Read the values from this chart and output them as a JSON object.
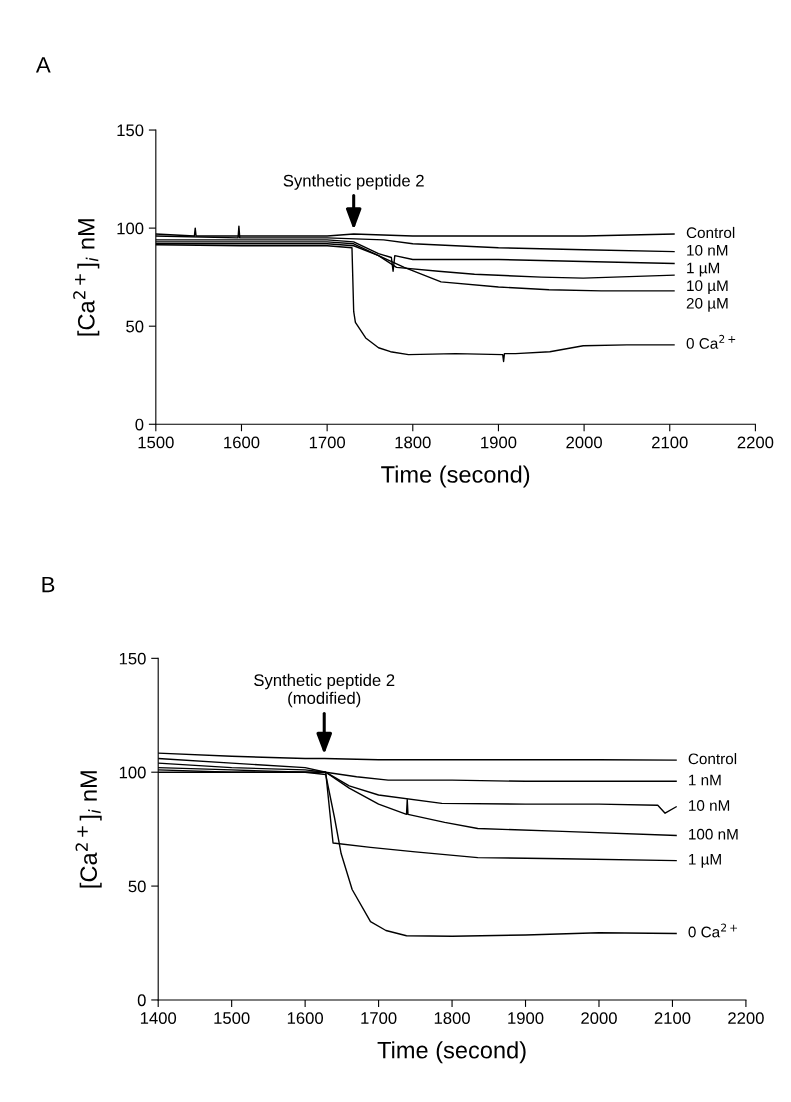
{
  "chart_data": [
    {
      "type": "line",
      "title": "A",
      "xlabel": "Time (second)",
      "ylabel": "[Ca$^{2+}$]$_{i}$ nM",
      "xlim": [
        1500,
        2200
      ],
      "xticks": [
        1500,
        1600,
        1700,
        1800,
        1900,
        2000,
        2100,
        2200
      ],
      "ylim": [
        0,
        150
      ],
      "yticks": [
        0,
        50,
        100,
        150
      ],
      "annotations": [
        {
          "text": "Synthetic peptide 2",
          "x": 1731,
          "y": 97
        }
      ],
      "series": [
        {
          "name": "Control",
          "color": "#000000",
          "x": [
            1500,
            1545,
            1546,
            1547,
            1600,
            1700,
            1731,
            1800,
            1900,
            2000,
            2105
          ],
          "values": [
            97,
            96,
            100,
            96,
            96,
            96,
            97,
            96,
            96,
            96,
            97
          ]
        },
        {
          "name": "10 nM",
          "color": "#000000",
          "x": [
            1500,
            1596,
            1597,
            1598,
            1700,
            1766,
            1800,
            1900,
            2000,
            2105
          ],
          "values": [
            96,
            95,
            101,
            95,
            95,
            94,
            92,
            90,
            89,
            88
          ]
        },
        {
          "name": "1 µM",
          "color": "#000000",
          "x": [
            1500,
            1600,
            1700,
            1731,
            1760,
            1775,
            1777,
            1779,
            1800,
            1900,
            2000,
            2105
          ],
          "values": [
            94,
            94,
            94,
            93,
            87,
            85,
            78,
            86,
            84,
            84,
            83,
            82
          ]
        },
        {
          "name": "10 µM",
          "color": "#000000",
          "x": [
            1500,
            1600,
            1700,
            1731,
            1760,
            1781,
            1830,
            1872,
            1950,
            1999,
            2105
          ],
          "values": [
            93,
            93,
            93,
            92,
            86,
            80,
            78,
            76.5,
            75,
            74.5,
            76
          ]
        },
        {
          "name": "20 µM",
          "color": "#000000",
          "x": [
            1500,
            1600,
            1700,
            1731,
            1760,
            1790,
            1833,
            1900,
            1959,
            2020,
            2105
          ],
          "values": [
            92,
            92,
            92,
            91,
            86,
            80,
            72.6,
            70,
            68.6,
            68,
            68
          ]
        },
        {
          "name": "0 Ca$^{2+}$",
          "color": "#000000",
          "x": [
            1500,
            1600,
            1700,
            1729,
            1731,
            1733,
            1745,
            1760,
            1774,
            1795,
            1850,
            1905,
            1906,
            1907,
            1920,
            1960,
            1999,
            2050,
            2105
          ],
          "values": [
            91.5,
            91,
            91,
            90,
            57.5,
            52,
            44,
            39,
            37,
            35.5,
            36,
            35.5,
            32,
            36,
            36,
            37,
            40,
            40.5,
            40.5
          ]
        }
      ]
    },
    {
      "type": "line",
      "title": "B",
      "xlabel": "Time (second)",
      "ylabel": "[Ca$^{2+}$]$_{i}$ nM",
      "xlim": [
        1400,
        2200
      ],
      "xticks": [
        1400,
        1500,
        1600,
        1700,
        1800,
        1900,
        2000,
        2100,
        2200
      ],
      "ylim": [
        0,
        150
      ],
      "yticks": [
        0,
        50,
        100,
        150
      ],
      "annotations": [
        {
          "text": "Synthetic peptide 2\n(modified)",
          "x": 1626,
          "y": 106
        }
      ],
      "series": [
        {
          "name": "Control",
          "color": "#000000",
          "x": [
            1400,
            1500,
            1600,
            1626,
            1700,
            1800,
            1900,
            2000,
            2105
          ],
          "values": [
            108.4,
            107,
            106,
            106,
            105.5,
            105.5,
            105.5,
            105.5,
            105.3
          ]
        },
        {
          "name": "1 nM",
          "color": "#000000",
          "x": [
            1400,
            1500,
            1600,
            1628,
            1670,
            1713,
            1800,
            1900,
            2000,
            2105
          ],
          "values": [
            106,
            104,
            102,
            100,
            98,
            96.5,
            96.5,
            96,
            96,
            96
          ]
        },
        {
          "name": "10 nM",
          "color": "#000000",
          "x": [
            1400,
            1500,
            1600,
            1628,
            1660,
            1700,
            1786,
            1900,
            2000,
            2080,
            2090,
            2105
          ],
          "values": [
            104,
            102,
            101,
            100,
            94,
            90,
            86.3,
            86,
            86,
            85.5,
            82,
            84.8
          ]
        },
        {
          "name": "100 nM",
          "color": "#000000",
          "x": [
            1400,
            1500,
            1600,
            1628,
            1660,
            1700,
            1738,
            1739,
            1740,
            1790,
            1835,
            1950,
            2105
          ],
          "values": [
            102,
            101,
            100,
            100,
            93,
            86,
            81.5,
            88,
            81.5,
            78,
            75.3,
            74,
            72.2
          ]
        },
        {
          "name": "1 µM",
          "color": "#000000",
          "x": [
            1400,
            1500,
            1600,
            1628,
            1636,
            1638,
            1689,
            1750,
            1835,
            1950,
            2105
          ],
          "values": [
            101,
            100,
            100,
            100,
            75,
            68.9,
            67,
            65,
            62.5,
            62,
            61.2
          ]
        },
        {
          "name": "0 Ca$^{2+}$",
          "color": "#000000",
          "x": [
            1400,
            1500,
            1600,
            1628,
            1640,
            1649,
            1664,
            1689,
            1710,
            1738,
            1800,
            1900,
            2000,
            2105
          ],
          "values": [
            100,
            100,
            100,
            99,
            80,
            64.3,
            48.5,
            34.4,
            30.5,
            28.2,
            28,
            28.5,
            29.5,
            29.2
          ]
        }
      ]
    }
  ]
}
